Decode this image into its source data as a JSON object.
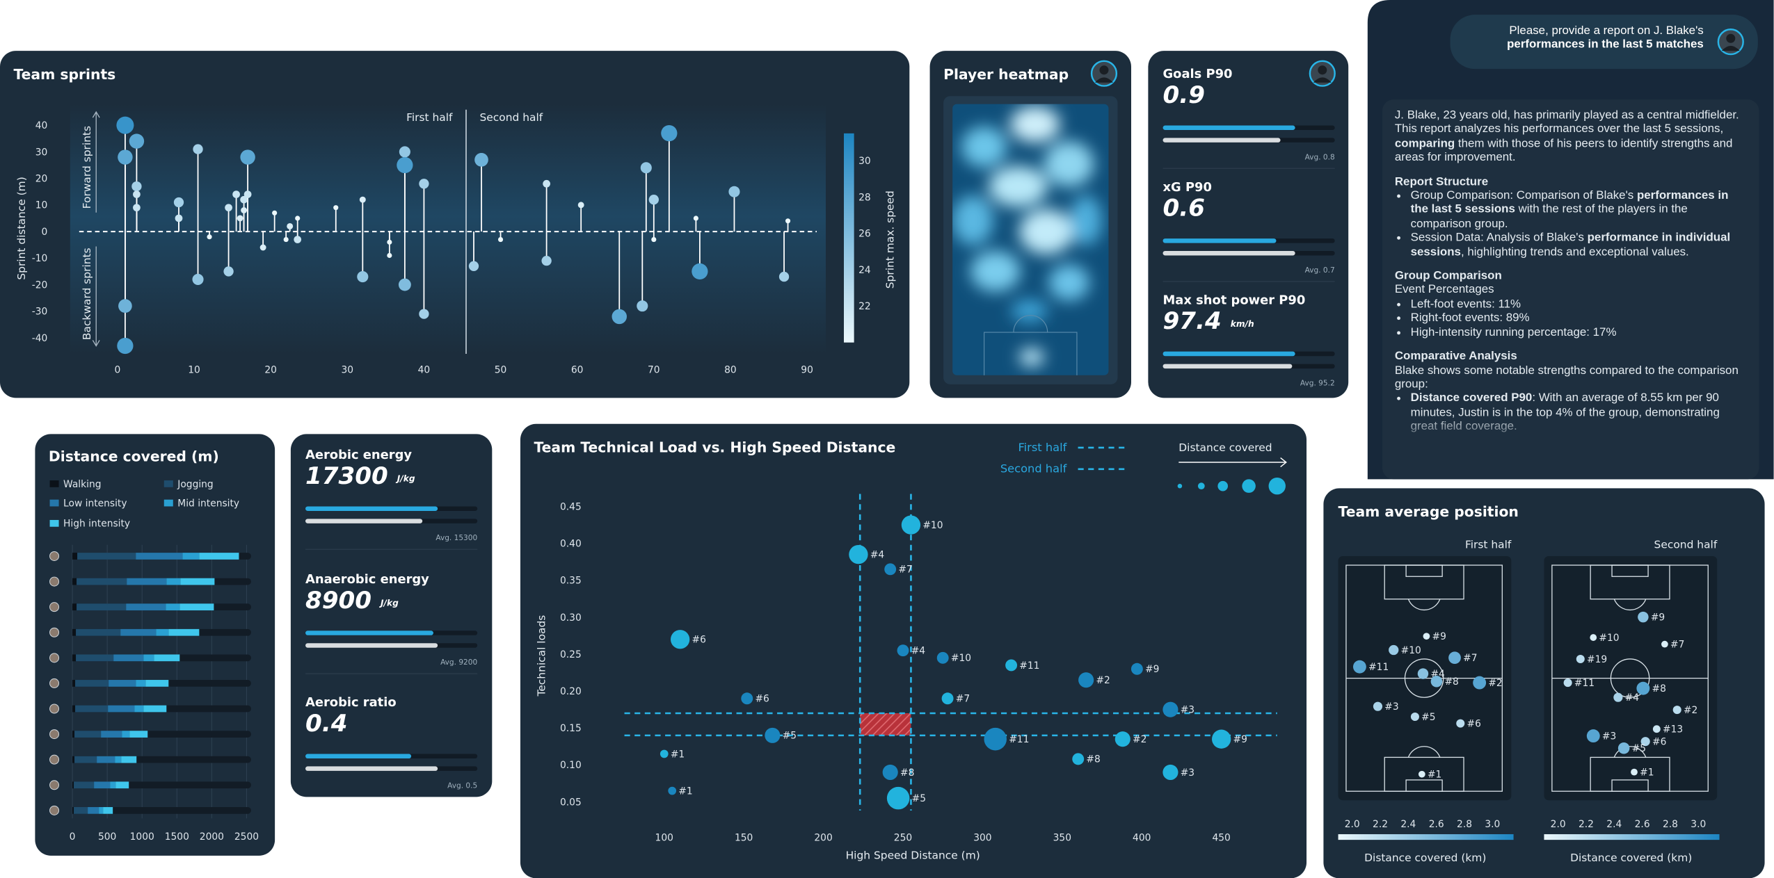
{
  "chart_data": [
    {
      "type": "lollipop",
      "title": "Team sprints",
      "ylabel": "Sprint distance (m)",
      "forward_label": "Forward sprints",
      "backward_label": "Backward sprints",
      "half_labels": [
        "First half",
        "Second half"
      ],
      "half_time": 45.5,
      "colorbar_label": "Sprint max. speed",
      "clim": [
        20,
        31.5
      ],
      "cticks": [
        22,
        24,
        26,
        28,
        30
      ],
      "xlim": [
        -5,
        92
      ],
      "xticks": [
        0,
        10,
        20,
        30,
        40,
        50,
        60,
        70,
        80,
        90
      ],
      "ylim": [
        -46,
        48
      ],
      "yticks": [
        -40,
        -30,
        -20,
        -10,
        0,
        10,
        20,
        30,
        40
      ],
      "x": [
        1,
        1,
        1,
        1,
        2.5,
        2.5,
        2.5,
        2.5,
        8,
        8,
        10.5,
        10.5,
        12,
        14.5,
        14.5,
        15.5,
        16,
        16.5,
        16.5,
        17,
        17,
        19,
        20.5,
        22,
        22.5,
        23.5,
        23.5,
        28.5,
        32,
        32,
        35.5,
        35.5,
        37.5,
        37.5,
        37.5,
        40,
        40,
        47.5,
        46.5,
        50,
        56,
        56,
        60.5,
        65.5,
        68.5,
        69,
        70,
        70,
        72,
        76,
        75.5,
        80.5,
        87,
        87.5
      ],
      "y": [
        40,
        28,
        -28,
        -43,
        34,
        17,
        14,
        9,
        11,
        5,
        31,
        -18,
        -2,
        -15,
        9,
        14,
        5,
        12,
        8,
        14,
        28,
        -6,
        7,
        -3,
        2,
        5,
        -3,
        9,
        12,
        -17,
        -4,
        -9,
        30,
        25,
        -20,
        18,
        -31,
        27,
        -13,
        -3,
        18,
        -11,
        10,
        -32,
        -28,
        24,
        12,
        -3,
        37,
        -15,
        5,
        15,
        -17,
        4
      ],
      "speed": [
        30,
        28,
        27,
        29,
        28,
        24,
        22,
        22,
        24,
        22,
        24,
        25,
        20,
        24,
        22,
        22,
        21,
        22,
        21,
        22,
        28,
        21,
        20,
        20,
        21,
        20,
        22,
        20,
        21,
        25,
        20,
        20,
        25,
        29,
        26,
        24,
        24,
        27,
        24,
        20,
        22,
        24,
        21,
        28,
        25,
        25,
        24,
        20,
        29,
        29,
        20,
        25,
        24,
        20
      ]
    },
    {
      "type": "stacked-barh",
      "title": "Distance covered (m)",
      "xlim": [
        0,
        2500
      ],
      "xticks": [
        0,
        500,
        1000,
        1500,
        2000,
        2500
      ],
      "series": [
        {
          "name": "Walking",
          "color": "#0b1118",
          "values": [
            70,
            60,
            60,
            50,
            50,
            40,
            40,
            30,
            30,
            20,
            20
          ]
        },
        {
          "name": "Jogging",
          "color": "#1f4d6d",
          "values": [
            840,
            720,
            710,
            640,
            540,
            480,
            470,
            380,
            320,
            290,
            200
          ]
        },
        {
          "name": "Low intensity",
          "color": "#2577ab",
          "values": [
            670,
            570,
            570,
            510,
            430,
            390,
            380,
            300,
            260,
            230,
            160
          ]
        },
        {
          "name": "Mid intensity",
          "color": "#2aa0d2",
          "values": [
            240,
            200,
            200,
            180,
            150,
            140,
            130,
            110,
            90,
            80,
            60
          ]
        },
        {
          "name": "High intensity",
          "color": "#3fc6ec",
          "values": [
            570,
            490,
            490,
            440,
            370,
            330,
            330,
            260,
            220,
            190,
            140
          ]
        }
      ]
    },
    {
      "type": "scatter",
      "title": "Team Technical Load vs. High Speed Distance",
      "xlabel": "High Speed Distance (m)",
      "ylabel": "Technical loads",
      "size_label": "Distance covered",
      "xlim": [
        75,
        485
      ],
      "xticks": [
        100,
        150,
        200,
        250,
        300,
        350,
        400,
        450
      ],
      "ylim": [
        0.02,
        0.47
      ],
      "yticks": [
        0.05,
        {
          "value": 0.1,
          "label": "0.10"
        },
        0.15,
        {
          "value": 0.2,
          "label": "0.20"
        },
        0.25,
        {
          "value": 0.3,
          "label": "0.30"
        },
        0.35,
        {
          "value": 0.4,
          "label": "0.40"
        },
        0.45
      ],
      "series": [
        {
          "name": "First half",
          "color": "#22b3dd",
          "avg_x": 255,
          "avg_y": 0.17,
          "x": [
            110,
            222,
            247,
            255,
            278,
            318,
            360,
            388,
            418,
            450,
            100
          ],
          "values": [
            0.27,
            0.385,
            0.055,
            0.425,
            0.19,
            0.235,
            0.108,
            0.135,
            0.09,
            0.135,
            0.115
          ],
          "sizes": [
            4,
            4,
            5,
            4,
            2,
            2,
            2,
            3,
            3,
            4,
            1
          ],
          "labels": [
            "#6",
            "#4",
            "#5",
            "#10",
            "#7",
            "#11",
            "#8",
            "#2",
            "#3",
            "#9",
            "#1"
          ]
        },
        {
          "name": "Second half",
          "color": "#1a86bf",
          "avg_x": 223,
          "avg_y": 0.14,
          "x": [
            105,
            152,
            168,
            242,
            242,
            250,
            275,
            308,
            365,
            397,
            418
          ],
          "values": [
            0.065,
            0.19,
            0.14,
            0.09,
            0.365,
            0.255,
            0.245,
            0.135,
            0.215,
            0.23,
            0.175
          ],
          "sizes": [
            1,
            2,
            3,
            3,
            2,
            2,
            2,
            5,
            3,
            2,
            3
          ],
          "labels": [
            "#1",
            "#6",
            "#5",
            "#8",
            "#7",
            "#4",
            "#10",
            "#11",
            "#2",
            "#9",
            "#3"
          ]
        }
      ]
    },
    {
      "type": "pitch",
      "panel_title": "Team average position",
      "title": "First half",
      "colorbar_label": "Distance covered (km)",
      "xlim": [
        0,
        68
      ],
      "ylim": [
        0,
        105
      ],
      "clim": [
        1.9,
        3.15
      ],
      "cticks": [
        {
          "value": 2,
          "label": "2.0"
        },
        2.2,
        2.4,
        2.6,
        2.8,
        {
          "value": 3,
          "label": "3.0"
        }
      ],
      "x": [
        35,
        20.7,
        47.3,
        5.9,
        33.5,
        39.4,
        58.1,
        13.8,
        30,
        49.8,
        33
      ],
      "y": [
        72,
        65.6,
        62,
        57.8,
        54.6,
        51,
        50.4,
        39.4,
        34.6,
        31.5,
        7.9
      ],
      "values": [
        2.0,
        2.4,
        2.7,
        2.8,
        2.5,
        2.6,
        2.8,
        2.3,
        2.2,
        2.2,
        2.0
      ],
      "labels": [
        "#9",
        "#10",
        "#7",
        "#11",
        "#4",
        "#8",
        "#2",
        "#3",
        "#5",
        "#6",
        "#1"
      ]
    },
    {
      "type": "pitch",
      "title": "Second half",
      "colorbar_label": "Distance covered (km)",
      "xlim": [
        0,
        68
      ],
      "ylim": [
        0,
        105
      ],
      "clim": [
        1.9,
        3.15
      ],
      "cticks": [
        {
          "value": 2,
          "label": "2.0"
        },
        2.2,
        2.4,
        2.6,
        2.8,
        {
          "value": 3,
          "label": "3.0"
        }
      ],
      "x": [
        39.7,
        18,
        49.1,
        12.4,
        6.9,
        39.7,
        28.8,
        54.5,
        45.6,
        18,
        40.7,
        31.3,
        35.8
      ],
      "y": [
        80.9,
        71.4,
        68.3,
        61.4,
        50.4,
        47.8,
        43.6,
        37.8,
        28.9,
        25.7,
        23.1,
        20,
        8.9
      ],
      "values": [
        2.5,
        2.0,
        2.0,
        2.2,
        2.2,
        2.8,
        2.3,
        2.2,
        2.1,
        2.8,
        2.3,
        2.6,
        2.0
      ],
      "labels": [
        "#9",
        "#10",
        "#7",
        "#19",
        "#11",
        "#8",
        "#4",
        "#2",
        "#13",
        "#3",
        "#6",
        "#5",
        "#1"
      ]
    }
  ],
  "heatmap": {
    "title": "Player heatmap"
  },
  "goals_card": {
    "metrics": [
      {
        "label": "Goals P90",
        "value": 0.9,
        "avg": 0.8,
        "avg_label": "Avg. 0.8"
      },
      {
        "label": "xG P90",
        "value": 0.6,
        "avg": 0.7,
        "avg_label": "Avg. 0.7"
      },
      {
        "label": "Max shot power P90",
        "value": 97.4,
        "unit": "km/h",
        "avg": 95.2,
        "avg_label": "Avg. 95.2"
      }
    ]
  },
  "energy_card": {
    "metrics": [
      {
        "label": "Aerobic energy",
        "value": 17300,
        "unit": "J/kg",
        "avg": 15300,
        "avg_label": "Avg. 15300"
      },
      {
        "label": "Anaerobic energy",
        "value": 8900,
        "unit": "J/kg",
        "avg": 9200,
        "avg_label": "Avg. 9200"
      },
      {
        "label": "Aerobic ratio",
        "value": 0.4,
        "avg": 0.5,
        "avg_label": "Avg. 0.5"
      }
    ]
  },
  "chat": {
    "request": [
      "Please, provide a report on J. Blake's",
      "performances in the last 5 matches"
    ],
    "response": [
      {
        "text": [
          "J. Blake, 23 years old, has primarily played as a central midfielder. This report analyzes his performances over the last 5 sessions, ",
          "comparing",
          " them with those of his peers to identify strengths and areas for improvement."
        ]
      },
      {
        "heading": "Report Structure"
      },
      {
        "bullets": [
          [
            "Group Comparison: Comparison of Blake's ",
            "performances in the last 5 sessions",
            " with the rest of the players in the comparison group."
          ],
          [
            "Session Data: Analysis of Blake's ",
            "performance in individual sessions",
            ", highlighting trends and exceptional values."
          ]
        ]
      },
      {
        "heading": "Group Comparison"
      },
      {
        "text": [
          "Event Percentages"
        ]
      },
      {
        "bullets": [
          [
            "Left-foot events: 11%"
          ],
          [
            "Right-foot events: 89%"
          ],
          [
            "High-intensity running percentage: 17%"
          ]
        ]
      },
      {
        "heading": "Comparative Analysis"
      },
      {
        "text": [
          "Blake shows some notable strengths compared to the comparison group:"
        ]
      },
      {
        "bullets": [
          [
            "",
            "Distance covered P90",
            ": With an average of 8.55 km per 90 minutes, Justin is in the top 4% of the group, demonstrating great field coverage."
          ]
        ]
      }
    ]
  }
}
